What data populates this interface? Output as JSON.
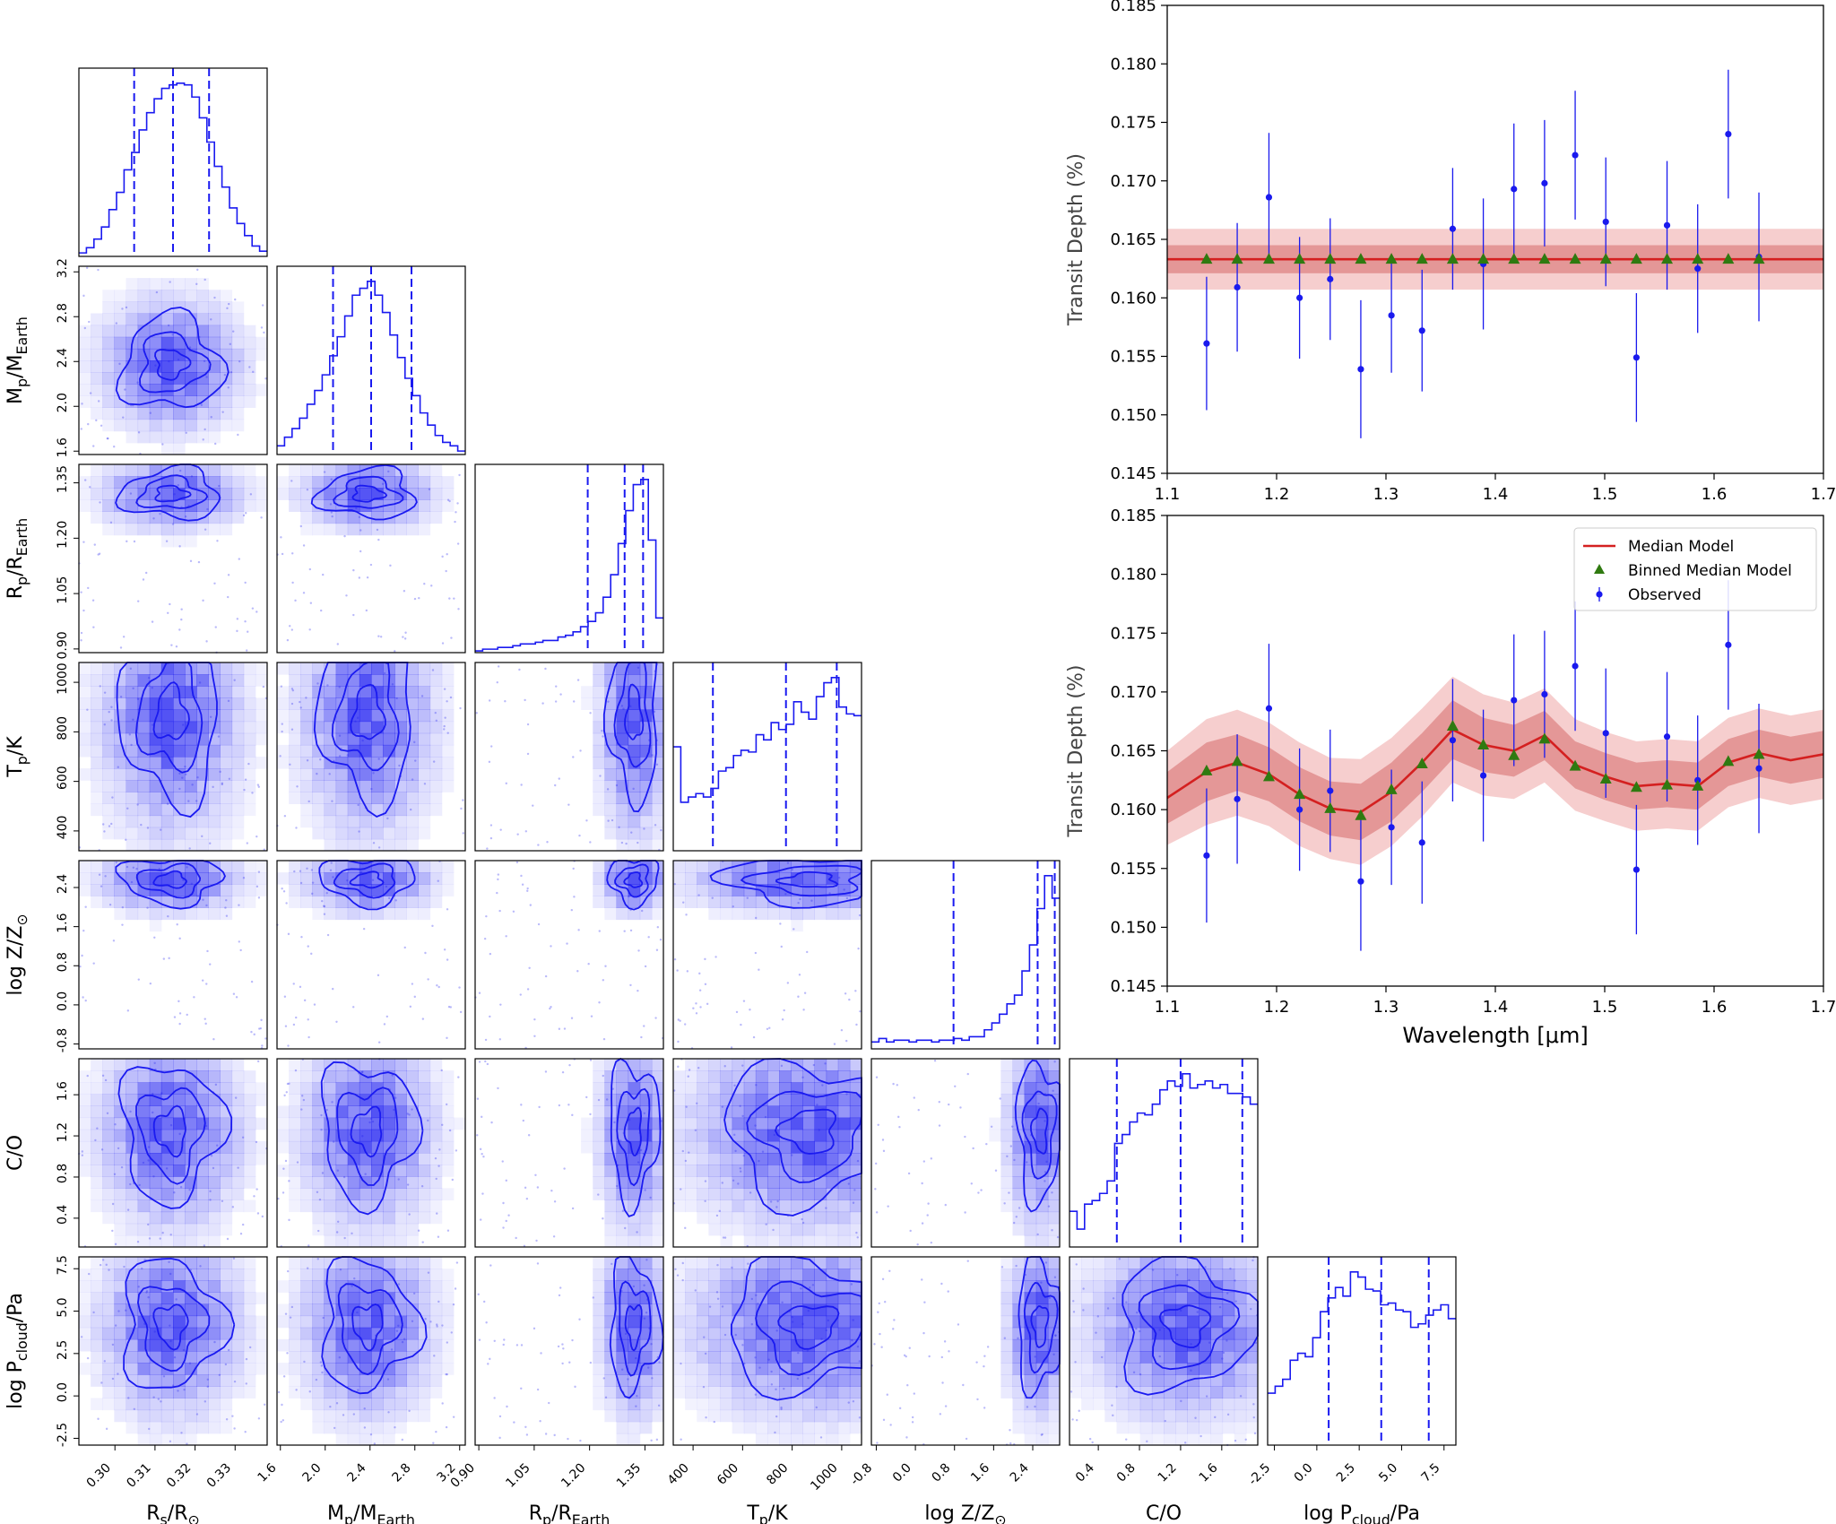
{
  "colors": {
    "posterior": "#1a1af0",
    "observed": "#1a1aee",
    "median_model": "#d42020",
    "band_inner": "#e08a8a",
    "band_outer": "#f5c6c6",
    "binned": "#2f7a10",
    "axis": "#000000"
  },
  "corner": {
    "parameters": [
      {
        "key": "Rs",
        "label": "R_s/R_⊙",
        "ticks": [
          "0.30",
          "0.31",
          "0.32",
          "0.33"
        ],
        "range": [
          0.291,
          0.338
        ],
        "tick_values": [
          0.3,
          0.31,
          0.32,
          0.33
        ],
        "hist": [
          2,
          5,
          10,
          17,
          27,
          37,
          50,
          60,
          73,
          83,
          91,
          97,
          99,
          100,
          99,
          92,
          80,
          66,
          52,
          40,
          28,
          19,
          12,
          6,
          3
        ],
        "quantiles": [
          0.3048,
          0.3145,
          0.3235
        ],
        "peak": [
          0.314,
          0.312
        ],
        "spread": [
          0.0065,
          0.006
        ]
      },
      {
        "key": "Mp",
        "label": "M_p/M_Earth",
        "ticks": [
          "1.6",
          "2.0",
          "2.4",
          "2.8",
          "3.2"
        ],
        "range": [
          1.57,
          3.25
        ],
        "tick_values": [
          1.6,
          2.0,
          2.4,
          2.8,
          3.2
        ],
        "hist": [
          5,
          10,
          15,
          21,
          29,
          37,
          46,
          57,
          68,
          80,
          92,
          96,
          100,
          92,
          82,
          69,
          56,
          44,
          34,
          24,
          17,
          11,
          7,
          5,
          2
        ],
        "quantiles": [
          2.07,
          2.41,
          2.77
        ],
        "peak": [
          2.38,
          2.34
        ],
        "spread": [
          0.22,
          0.22
        ]
      },
      {
        "key": "Rp",
        "label": "R_p/R_Earth",
        "ticks": [
          "0.90",
          "1.05",
          "1.20",
          "1.35"
        ],
        "range": [
          0.89,
          1.4
        ],
        "tick_values": [
          0.9,
          1.05,
          1.2,
          1.35
        ],
        "hist": [
          1,
          2,
          2,
          3,
          3,
          4,
          5,
          5,
          6,
          7,
          7,
          9,
          10,
          12,
          15,
          18,
          23,
          32,
          45,
          63,
          82,
          97,
          100,
          65,
          20
        ],
        "quantiles": [
          1.195,
          1.295,
          1.345
        ],
        "peak": [
          1.32,
          1.325
        ],
        "spread": [
          0.035,
          0.03
        ]
      },
      {
        "key": "Tp",
        "label": "T_p/K",
        "ticks": [
          "400",
          "600",
          "800",
          "1000"
        ],
        "range": [
          320,
          1080
        ],
        "tick_values": [
          400,
          600,
          800,
          1000
        ],
        "hist": [
          60,
          28,
          31,
          33,
          31,
          36,
          46,
          48,
          55,
          58,
          57,
          67,
          64,
          74,
          70,
          73,
          86,
          80,
          76,
          89,
          97,
          100,
          83,
          79,
          78
        ],
        "quantiles": [
          480,
          775,
          980
        ],
        "peak": [
          870,
          840
        ],
        "spread": [
          180,
          180
        ]
      },
      {
        "key": "logZ",
        "label": "log Z/Z_⊙",
        "ticks": [
          "-0.8",
          "0.0",
          "0.8",
          "1.6",
          "2.4"
        ],
        "range": [
          -0.9,
          2.95
        ],
        "tick_values": [
          -0.8,
          0.0,
          0.8,
          1.6,
          2.4
        ],
        "hist": [
          4,
          6,
          4,
          5,
          5,
          4,
          5,
          5,
          4,
          5,
          5,
          6,
          5,
          7,
          7,
          11,
          15,
          20,
          26,
          31,
          45,
          60,
          81,
          100,
          87
        ],
        "quantiles": [
          0.78,
          2.5,
          2.85
        ],
        "peak": [
          2.55,
          2.55
        ],
        "spread": [
          0.25,
          0.2
        ]
      },
      {
        "key": "CO",
        "label": "C/O",
        "ticks": [
          "0.4",
          "0.8",
          "1.2",
          "1.6"
        ],
        "range": [
          0.12,
          1.95
        ],
        "tick_values": [
          0.4,
          0.8,
          1.2,
          1.6
        ],
        "hist": [
          20,
          10,
          24,
          26,
          30,
          37,
          58,
          63,
          70,
          75,
          74,
          80,
          88,
          93,
          90,
          97,
          89,
          91,
          93,
          89,
          91,
          86,
          86,
          84,
          80
        ],
        "quantiles": [
          0.58,
          1.2,
          1.8
        ],
        "peak": [
          1.25,
          1.3
        ],
        "spread": [
          0.35,
          0.35
        ]
      },
      {
        "key": "Pc",
        "label": "log P_cloud/Pa",
        "ticks": [
          "-2.5",
          "0.0",
          "2.5",
          "5.0",
          "7.5"
        ],
        "range": [
          -2.9,
          8.2
        ],
        "tick_values": [
          -2.5,
          0.0,
          2.5,
          5.0,
          7.5
        ],
        "hist": [
          30,
          34,
          38,
          49,
          53,
          51,
          62,
          77,
          85,
          91,
          86,
          100,
          97,
          90,
          89,
          81,
          82,
          78,
          77,
          68,
          70,
          75,
          78,
          81,
          73
        ],
        "quantiles": [
          0.7,
          3.8,
          6.6
        ],
        "peak": [
          4.2,
          4.0
        ],
        "spread": [
          2.0,
          2.0
        ]
      }
    ]
  },
  "spectra": {
    "wavelength_label": "Wavelength [μm]",
    "depth_label": "Transit Depth (%)",
    "observed_x": [
      1.136,
      1.164,
      1.193,
      1.221,
      1.249,
      1.277,
      1.305,
      1.333,
      1.361,
      1.389,
      1.417,
      1.445,
      1.473,
      1.501,
      1.529,
      1.557,
      1.585,
      1.613,
      1.641
    ],
    "observed_y": [
      0.1561,
      0.1609,
      0.1686,
      0.16,
      0.1616,
      0.1539,
      0.1585,
      0.1572,
      0.1659,
      0.1629,
      0.1693,
      0.1698,
      0.1722,
      0.1665,
      0.1549,
      0.1662,
      0.1625,
      0.174,
      0.1635
    ],
    "observed_err": [
      0.0057,
      0.0055,
      0.0055,
      0.0052,
      0.0052,
      0.0059,
      0.0049,
      0.0052,
      0.0052,
      0.0056,
      0.0056,
      0.0054,
      0.0055,
      0.0055,
      0.0055,
      0.0055,
      0.0055,
      0.0055,
      0.0055
    ],
    "top": {
      "chart_data": {
        "type": "scatter",
        "xlabel": "",
        "ylabel": "Transit Depth (%)",
        "xlim": [
          1.1,
          1.7
        ],
        "ylim": [
          0.145,
          0.185
        ],
        "xticks": [
          "1.1",
          "1.2",
          "1.3",
          "1.4",
          "1.5",
          "1.6",
          "1.7"
        ],
        "yticks": [
          "0.145",
          "0.150",
          "0.155",
          "0.160",
          "0.165",
          "0.170",
          "0.175",
          "0.180",
          "0.185"
        ],
        "median_model": {
          "x": [
            1.1,
            1.7
          ],
          "y": [
            0.1633,
            0.1633
          ]
        },
        "band_inner": [
          0.1621,
          0.1645
        ],
        "band_outer": [
          0.1607,
          0.1659
        ],
        "binned_y": [
          0.1633,
          0.1633,
          0.1633,
          0.1633,
          0.1633,
          0.1633,
          0.1633,
          0.1633,
          0.1633,
          0.1633,
          0.1633,
          0.1633,
          0.1633,
          0.1633,
          0.1633,
          0.1633,
          0.1633,
          0.1633,
          0.1633
        ]
      }
    },
    "bottom": {
      "chart_data": {
        "type": "line",
        "xlabel": "Wavelength [μm]",
        "ylabel": "Transit Depth (%)",
        "xlim": [
          1.1,
          1.7
        ],
        "ylim": [
          0.145,
          0.185
        ],
        "xticks": [
          "1.1",
          "1.2",
          "1.3",
          "1.4",
          "1.5",
          "1.6",
          "1.7"
        ],
        "yticks": [
          "0.145",
          "0.150",
          "0.155",
          "0.160",
          "0.165",
          "0.170",
          "0.175",
          "0.180",
          "0.185"
        ],
        "median_model": {
          "x": [
            1.1,
            1.136,
            1.164,
            1.193,
            1.221,
            1.249,
            1.277,
            1.305,
            1.333,
            1.361,
            1.389,
            1.417,
            1.445,
            1.473,
            1.501,
            1.529,
            1.557,
            1.585,
            1.613,
            1.641,
            1.67,
            1.7
          ],
          "y": [
            0.161,
            0.1632,
            0.164,
            0.163,
            0.1613,
            0.1601,
            0.1598,
            0.1615,
            0.164,
            0.1668,
            0.1655,
            0.165,
            0.1663,
            0.1638,
            0.1628,
            0.162,
            0.1622,
            0.162,
            0.164,
            0.1648,
            0.1642,
            0.1647
          ]
        },
        "band_inner_half": [
          0.0022,
          0.0025,
          0.0024,
          0.0023,
          0.0023,
          0.0023,
          0.0024,
          0.0025,
          0.0025,
          0.0025,
          0.0023,
          0.0022,
          0.0021,
          0.002,
          0.002,
          0.002,
          0.002,
          0.002,
          0.002,
          0.002,
          0.002,
          0.002
        ],
        "band_outer_half": [
          0.004,
          0.0045,
          0.0045,
          0.0044,
          0.0044,
          0.0043,
          0.0045,
          0.0046,
          0.0046,
          0.0045,
          0.0043,
          0.0041,
          0.004,
          0.0039,
          0.0038,
          0.0038,
          0.0038,
          0.0038,
          0.0038,
          0.0038,
          0.0038,
          0.0038
        ],
        "binned_y": [
          0.1633,
          0.1641,
          0.1628,
          0.1613,
          0.1601,
          0.1595,
          0.1617,
          0.1639,
          0.1671,
          0.1655,
          0.1646,
          0.166,
          0.1637,
          0.1626,
          0.1619,
          0.1621,
          0.162,
          0.1641,
          0.1647
        ]
      },
      "legend": {
        "entries": [
          "Median Model",
          "Binned Median Model",
          "Observed"
        ],
        "placement": "top-right"
      }
    }
  }
}
